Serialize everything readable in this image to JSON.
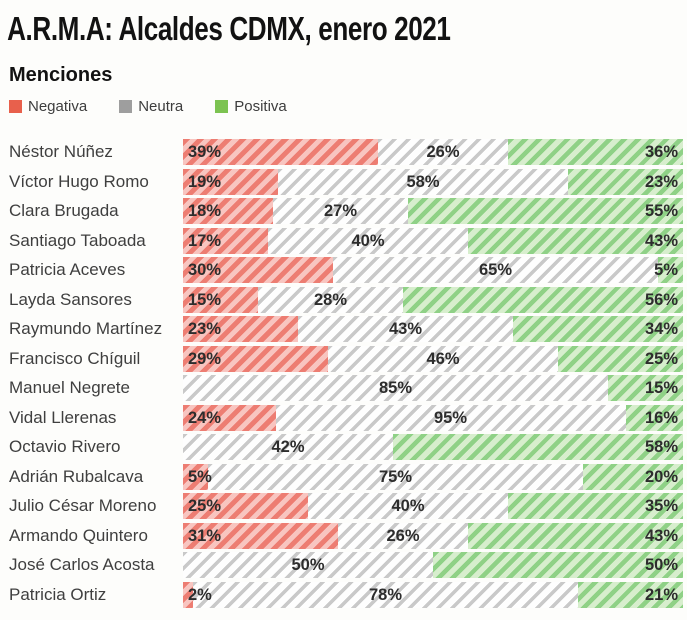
{
  "title": "A.R.M.A: Alcaldes CDMX, enero 2021",
  "subtitle": "Menciones",
  "legend": [
    {
      "id": "negativa",
      "label": "Negativa",
      "color": "#e8604c"
    },
    {
      "id": "neutra",
      "label": "Neutra",
      "color": "#9e9e9e"
    },
    {
      "id": "positiva",
      "label": "Positiva",
      "color": "#7cc351"
    }
  ],
  "colors": {
    "negativa_stripe": "#ed7d72",
    "negativa_bg": "#f8c5c0",
    "neutra_stripe": "#c9c9c9",
    "neutra_bg": "#fefefe",
    "positiva_stripe": "#8fd186",
    "positiva_bg": "#d7eecd",
    "background": "#fdfdfb",
    "text_title": "#121212",
    "text_name": "#3f3f3f",
    "text_label": "#2d2d2d"
  },
  "chart_data": {
    "type": "bar",
    "orientation": "horizontal",
    "stacked": true,
    "grid": false,
    "legend_position": "top-left",
    "title": "A.R.M.A: Alcaldes CDMX, enero 2021",
    "subtitle": "Menciones",
    "xlim": [
      0,
      100
    ],
    "unit": "%",
    "categories": [
      "Néstor Núñez",
      "Víctor Hugo Romo",
      "Clara Brugada",
      "Santiago Taboada",
      "Patricia Aceves",
      "Layda Sansores",
      "Raymundo Martínez",
      "Francisco Chíguil",
      "Manuel Negrete",
      "Vidal Llerenas",
      "Octavio Rivero",
      "Adrián Rubalcava",
      "Julio César Moreno",
      "Armando Quintero",
      "José Carlos Acosta",
      "Patricia Ortiz"
    ],
    "series": [
      {
        "name": "Negativa",
        "values": [
          39,
          19,
          18,
          17,
          30,
          15,
          23,
          29,
          0,
          24,
          0,
          5,
          25,
          31,
          0,
          2
        ]
      },
      {
        "name": "Neutra",
        "values": [
          26,
          58,
          27,
          40,
          65,
          28,
          43,
          46,
          85,
          95,
          42,
          75,
          40,
          26,
          50,
          78
        ]
      },
      {
        "name": "Positiva",
        "values": [
          36,
          23,
          55,
          43,
          5,
          56,
          34,
          25,
          15,
          16,
          58,
          20,
          35,
          43,
          50,
          21
        ]
      }
    ],
    "rows": [
      {
        "name": "Néstor Núñez",
        "neg": "39%",
        "neu": "26%",
        "pos": "36%",
        "w": [
          39,
          26,
          35
        ]
      },
      {
        "name": "Víctor Hugo Romo",
        "neg": "19%",
        "neu": "58%",
        "pos": "23%",
        "w": [
          19,
          58,
          23
        ]
      },
      {
        "name": "Clara Brugada",
        "neg": "18%",
        "neu": "27%",
        "pos": "55%",
        "w": [
          18,
          27,
          55
        ]
      },
      {
        "name": "Santiago Taboada",
        "neg": "17%",
        "neu": "40%",
        "pos": "43%",
        "w": [
          17,
          40,
          43
        ]
      },
      {
        "name": "Patricia Aceves",
        "neg": "30%",
        "neu": "65%",
        "pos": "5%",
        "w": [
          30,
          65,
          5
        ]
      },
      {
        "name": "Layda Sansores",
        "neg": "15%",
        "neu": "28%",
        "pos": "56%",
        "w": [
          15,
          29,
          56
        ]
      },
      {
        "name": "Raymundo Martínez",
        "neg": "23%",
        "neu": "43%",
        "pos": "34%",
        "w": [
          23,
          43,
          34
        ]
      },
      {
        "name": "Francisco Chíguil",
        "neg": "29%",
        "neu": "46%",
        "pos": "25%",
        "w": [
          29,
          46,
          25
        ]
      },
      {
        "name": "Manuel Negrete",
        "neg": "",
        "neu": "85%",
        "pos": "15%",
        "w": [
          0,
          85,
          15
        ]
      },
      {
        "name": "Vidal Llerenas",
        "neg": "24%",
        "neu": "95%",
        "pos": "16%",
        "w": [
          18.5,
          70,
          11.5
        ]
      },
      {
        "name": "Octavio Rivero",
        "neg": "",
        "neu": "42%",
        "pos": "58%",
        "w": [
          0,
          42,
          58
        ]
      },
      {
        "name": "Adrián Rubalcava",
        "neg": "5%",
        "neu": "75%",
        "pos": "20%",
        "w": [
          5,
          75,
          20
        ]
      },
      {
        "name": "Julio César Moreno",
        "neg": "25%",
        "neu": "40%",
        "pos": "35%",
        "w": [
          25,
          40,
          35
        ]
      },
      {
        "name": "Armando Quintero",
        "neg": "31%",
        "neu": "26%",
        "pos": "43%",
        "w": [
          31,
          26,
          43
        ]
      },
      {
        "name": "José Carlos Acosta",
        "neg": "",
        "neu": "50%",
        "pos": "50%",
        "w": [
          0,
          50,
          50
        ]
      },
      {
        "name": "Patricia Ortiz",
        "neg": "2%",
        "neu": "78%",
        "pos": "21%",
        "w": [
          2,
          77,
          21
        ]
      }
    ]
  }
}
